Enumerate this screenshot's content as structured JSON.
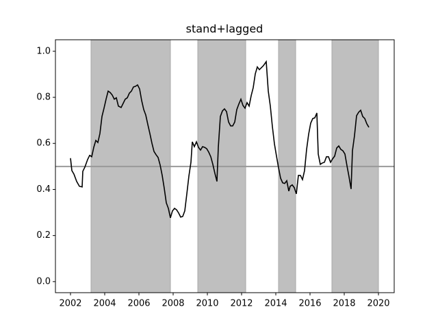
{
  "chart_data": {
    "type": "line",
    "title": "stand+lagged",
    "x": [
      2002.0,
      2002.08,
      2002.2,
      2002.36,
      2002.52,
      2002.68,
      2002.72,
      2002.84,
      2003.0,
      2003.12,
      2003.24,
      2003.36,
      2003.48,
      2003.6,
      2003.72,
      2003.84,
      2003.96,
      2004.08,
      2004.2,
      2004.32,
      2004.44,
      2004.56,
      2004.68,
      2004.8,
      2004.96,
      2005.08,
      2005.2,
      2005.32,
      2005.44,
      2005.56,
      2005.68,
      2005.8,
      2005.92,
      2006.04,
      2006.16,
      2006.28,
      2006.4,
      2006.52,
      2006.64,
      2006.76,
      2006.88,
      2007.0,
      2007.12,
      2007.24,
      2007.36,
      2007.48,
      2007.6,
      2007.72,
      2007.84,
      2007.96,
      2008.08,
      2008.2,
      2008.32,
      2008.44,
      2008.56,
      2008.68,
      2008.8,
      2008.92,
      2009.04,
      2009.12,
      2009.24,
      2009.36,
      2009.48,
      2009.6,
      2009.72,
      2009.84,
      2009.96,
      2010.08,
      2010.2,
      2010.32,
      2010.44,
      2010.56,
      2010.64,
      2010.76,
      2010.88,
      2011.0,
      2011.12,
      2011.24,
      2011.36,
      2011.48,
      2011.6,
      2011.72,
      2011.84,
      2011.96,
      2012.08,
      2012.2,
      2012.32,
      2012.44,
      2012.56,
      2012.68,
      2012.8,
      2012.92,
      2013.04,
      2013.16,
      2013.28,
      2013.44,
      2013.56,
      2013.68,
      2013.8,
      2013.92,
      2014.04,
      2014.16,
      2014.28,
      2014.4,
      2014.52,
      2014.64,
      2014.76,
      2014.84,
      2014.96,
      2015.08,
      2015.2,
      2015.32,
      2015.44,
      2015.56,
      2015.68,
      2015.8,
      2015.92,
      2016.04,
      2016.16,
      2016.28,
      2016.4,
      2016.48,
      2016.6,
      2016.72,
      2016.84,
      2016.96,
      2017.08,
      2017.2,
      2017.32,
      2017.44,
      2017.56,
      2017.68,
      2017.8,
      2017.92,
      2018.04,
      2018.16,
      2018.28,
      2018.4,
      2018.48,
      2018.6,
      2018.72,
      2018.84,
      2018.96,
      2019.08,
      2019.2,
      2019.32,
      2019.44
    ],
    "values": [
      0.536,
      0.482,
      0.467,
      0.435,
      0.414,
      0.411,
      0.479,
      0.497,
      0.53,
      0.548,
      0.542,
      0.583,
      0.613,
      0.604,
      0.643,
      0.717,
      0.753,
      0.792,
      0.827,
      0.821,
      0.81,
      0.792,
      0.798,
      0.762,
      0.756,
      0.774,
      0.792,
      0.798,
      0.818,
      0.827,
      0.845,
      0.848,
      0.854,
      0.836,
      0.786,
      0.747,
      0.723,
      0.682,
      0.643,
      0.601,
      0.565,
      0.551,
      0.539,
      0.506,
      0.461,
      0.405,
      0.342,
      0.318,
      0.277,
      0.307,
      0.318,
      0.312,
      0.298,
      0.28,
      0.283,
      0.307,
      0.381,
      0.458,
      0.518,
      0.607,
      0.586,
      0.607,
      0.583,
      0.571,
      0.586,
      0.583,
      0.577,
      0.562,
      0.542,
      0.509,
      0.47,
      0.435,
      0.583,
      0.717,
      0.741,
      0.75,
      0.738,
      0.693,
      0.676,
      0.676,
      0.693,
      0.747,
      0.771,
      0.792,
      0.765,
      0.753,
      0.777,
      0.762,
      0.807,
      0.842,
      0.902,
      0.932,
      0.92,
      0.929,
      0.938,
      0.955,
      0.827,
      0.762,
      0.673,
      0.598,
      0.545,
      0.494,
      0.449,
      0.429,
      0.426,
      0.438,
      0.393,
      0.414,
      0.42,
      0.408,
      0.381,
      0.461,
      0.461,
      0.443,
      0.482,
      0.574,
      0.64,
      0.688,
      0.708,
      0.711,
      0.732,
      0.554,
      0.509,
      0.515,
      0.518,
      0.542,
      0.542,
      0.518,
      0.533,
      0.545,
      0.58,
      0.589,
      0.574,
      0.568,
      0.554,
      0.503,
      0.455,
      0.402,
      0.568,
      0.634,
      0.72,
      0.735,
      0.744,
      0.717,
      0.708,
      0.685,
      0.67
    ],
    "color": "#000000",
    "spans": [
      [
        2003.2,
        2007.84
      ],
      [
        2009.44,
        2012.24
      ],
      [
        2014.16,
        2015.16
      ],
      [
        2017.28,
        2020.0
      ]
    ],
    "span_color": "#bfbfbf",
    "hline": 0.5,
    "hline_color": "#999999",
    "xlim": [
      2001.12,
      2020.92
    ],
    "ylim": [
      -0.048,
      1.05
    ],
    "xticks": [
      2002,
      2004,
      2006,
      2008,
      2010,
      2012,
      2014,
      2016,
      2018,
      2020
    ],
    "yticks": [
      {
        "value": 0,
        "label": "0.0"
      },
      0.2,
      0.4,
      0.6,
      0.8,
      {
        "value": 1,
        "label": "1.0"
      }
    ]
  }
}
